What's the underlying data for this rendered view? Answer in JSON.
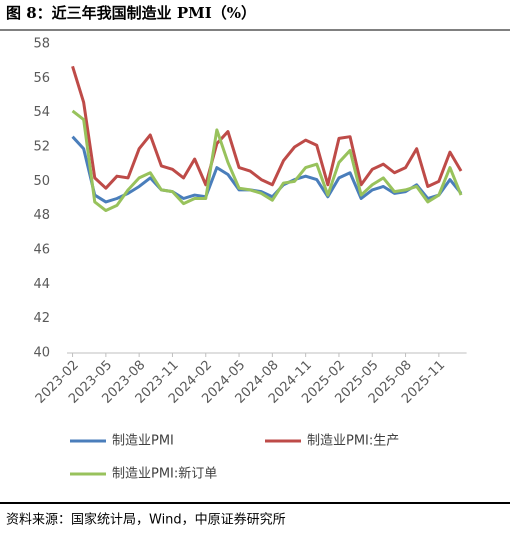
{
  "chart_data": {
    "type": "line",
    "title": "图 8：近三年我国制造业 PMI（%）",
    "source": "资料来源：国家统计局，Wind，中原证券研究所",
    "categories": [
      "2023-02",
      null,
      null,
      "2023-05",
      null,
      null,
      "2023-08",
      null,
      null,
      "2023-11",
      null,
      null,
      "2024-02",
      null,
      null,
      "2024-05",
      null,
      null,
      "2024-08",
      null,
      null,
      "2024-11",
      null,
      null,
      "2025-02",
      null,
      null,
      "2025-05",
      null,
      null,
      "2025-08",
      null,
      null,
      "2025-11",
      null,
      null
    ],
    "series": [
      {
        "name": "制造业PMI",
        "color": "#4a7ebb",
        "values": [
          52.6,
          51.9,
          49.2,
          48.8,
          49.0,
          49.3,
          49.7,
          50.2,
          49.5,
          49.4,
          49.0,
          49.2,
          49.1,
          50.8,
          50.4,
          49.5,
          49.5,
          49.4,
          49.1,
          49.8,
          50.1,
          50.3,
          50.1,
          49.1,
          50.2,
          50.5,
          49.0,
          49.5,
          49.7,
          49.3,
          49.4,
          49.8,
          49.0,
          49.2,
          50.1,
          49.3
        ]
      },
      {
        "name": "制造业PMI:生产",
        "color": "#be4b48",
        "values": [
          56.7,
          54.6,
          50.2,
          49.6,
          50.3,
          50.2,
          51.9,
          52.7,
          50.9,
          50.7,
          50.2,
          51.3,
          49.8,
          52.2,
          52.9,
          50.8,
          50.6,
          50.1,
          49.8,
          51.2,
          52.0,
          52.4,
          52.1,
          49.8,
          52.5,
          52.6,
          49.8,
          50.7,
          51.0,
          50.5,
          50.8,
          51.9,
          49.7,
          50.0,
          51.7,
          50.6
        ]
      },
      {
        "name": "制造业PMI:新订单",
        "color": "#98c25c",
        "values": [
          54.1,
          53.6,
          48.8,
          48.3,
          48.6,
          49.5,
          50.2,
          50.5,
          49.5,
          49.4,
          48.7,
          49.0,
          49.0,
          53.0,
          51.1,
          49.6,
          49.5,
          49.3,
          48.9,
          49.9,
          50.0,
          50.8,
          51.0,
          49.2,
          51.1,
          51.8,
          49.2,
          49.8,
          50.2,
          49.4,
          49.5,
          49.7,
          48.8,
          49.2,
          50.8,
          49.2
        ]
      }
    ],
    "ylim": [
      40,
      58
    ],
    "yticks": [
      40,
      42,
      44,
      46,
      48,
      50,
      52,
      54,
      56,
      58
    ],
    "grid": false,
    "legend": "bottom"
  }
}
